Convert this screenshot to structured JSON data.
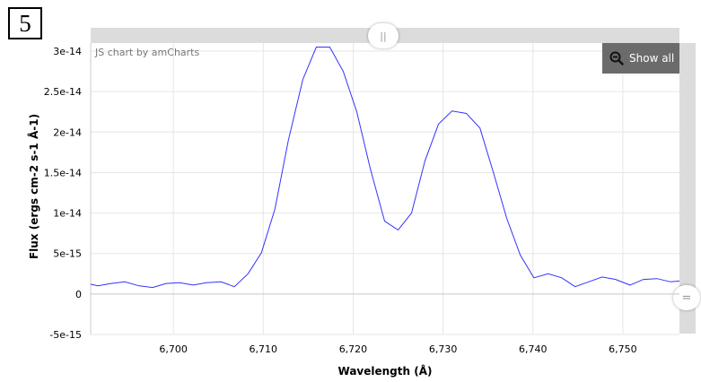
{
  "panel_badge": "5",
  "credit": "JS chart by amCharts",
  "show_all_label": "Show all",
  "colors": {
    "line": "#3333ff",
    "grid": "#e6e6e6",
    "zero_line": "#c8c8c8",
    "scrollbar": "#dcdcdc",
    "button": "#6b6b6b"
  },
  "chart_data": {
    "type": "line",
    "xlabel": "Wavelength (Å)",
    "ylabel": "Flux (ergs cm-2 s-1 Å-1)",
    "xlim": [
      6690.8,
      6756.3
    ],
    "ylim": [
      -5e-15,
      3.1e-14
    ],
    "x_ticks": [
      6700,
      6710,
      6720,
      6730,
      6740,
      6750
    ],
    "x_tick_labels": [
      "6,700",
      "6,710",
      "6,720",
      "6,730",
      "6,740",
      "6,750"
    ],
    "y_ticks": [
      -5e-15,
      0,
      5e-15,
      1e-14,
      1.5e-14,
      2e-14,
      2.5e-14,
      3e-14
    ],
    "y_tick_labels": [
      "-5e-15",
      "0",
      "5e-15",
      "1e-14",
      "1.5e-14",
      "2e-14",
      "2.5e-14",
      "3e-14"
    ],
    "grid": true,
    "series": [
      {
        "x": [
          6690.8,
          6691.6,
          6693.1,
          6694.6,
          6696.2,
          6697.7,
          6699.2,
          6700.7,
          6702.2,
          6703.7,
          6705.3,
          6706.8,
          6708.3,
          6709.8,
          6711.3,
          6712.8,
          6714.4,
          6715.9,
          6717.4,
          6718.9,
          6720.4,
          6721.9,
          6723.5,
          6725.0,
          6726.5,
          6728.0,
          6729.5,
          6731.0,
          6732.6,
          6734.1,
          6735.6,
          6737.1,
          6738.6,
          6740.1,
          6741.7,
          6743.2,
          6744.7,
          6746.2,
          6747.7,
          6749.2,
          6750.8,
          6752.3,
          6753.8,
          6755.3,
          6756.3
        ],
        "y": [
          1.2e-15,
          1e-15,
          1.3e-15,
          1.5e-15,
          1e-15,
          8e-16,
          1.3e-15,
          1.4e-15,
          1.1e-15,
          1.4e-15,
          1.5e-15,
          9e-16,
          2.5e-15,
          5.1e-15,
          1.05e-14,
          1.9e-14,
          2.65e-14,
          3.05e-14,
          3.05e-14,
          2.75e-14,
          2.25e-14,
          1.55e-14,
          9e-15,
          7.9e-15,
          1e-14,
          1.65e-14,
          2.1e-14,
          2.26e-14,
          2.23e-14,
          2.05e-14,
          1.5e-14,
          9.3e-15,
          4.8e-15,
          2e-15,
          2.5e-15,
          2e-15,
          9e-16,
          1.5e-15,
          2.1e-15,
          1.8e-15,
          1.1e-15,
          1.8e-15,
          1.9e-15,
          1.5e-15,
          1.6e-15
        ]
      }
    ]
  }
}
